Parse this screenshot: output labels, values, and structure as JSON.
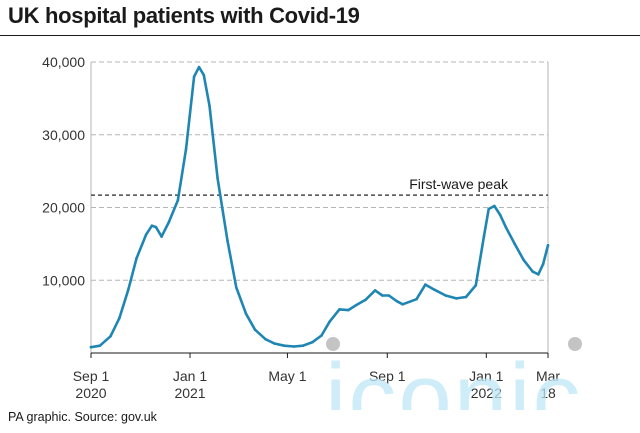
{
  "title": "UK hospital patients with Covid-19",
  "source": "PA graphic. Source: gov.uk",
  "watermark": "iconic",
  "chart_data": {
    "type": "line",
    "title": "UK hospital patients with Covid-19",
    "x_range": [
      "2020-09-01",
      "2022-03-18"
    ],
    "ylim": [
      0,
      40000
    ],
    "y_ticks": [
      {
        "value": 10000,
        "label": "10,000"
      },
      {
        "value": 20000,
        "label": "20,000"
      },
      {
        "value": 30000,
        "label": "30,000"
      },
      {
        "value": 40000,
        "label": "40,000"
      }
    ],
    "x_ticks": [
      {
        "date": "2020-09-01",
        "line1": "Sep 1",
        "line2": "2020"
      },
      {
        "date": "2021-01-01",
        "line1": "Jan 1",
        "line2": "2021"
      },
      {
        "date": "2021-05-01",
        "line1": "May 1",
        "line2": ""
      },
      {
        "date": "2021-09-01",
        "line1": "Sep 1",
        "line2": ""
      },
      {
        "date": "2022-01-01",
        "line1": "Jan 1",
        "line2": "2022"
      },
      {
        "date": "2022-03-18",
        "line1": "Mar",
        "line2": "18"
      }
    ],
    "grid": true,
    "series_color": "#1f86b3",
    "reference_line": {
      "value": 21700,
      "label": "First-wave peak"
    },
    "x": [
      "2020-09-01",
      "2020-09-12",
      "2020-09-25",
      "2020-10-06",
      "2020-10-17",
      "2020-10-27",
      "2020-11-08",
      "2020-11-15",
      "2020-11-20",
      "2020-11-27",
      "2020-12-06",
      "2020-12-17",
      "2020-12-27",
      "2021-01-06",
      "2021-01-12",
      "2021-01-18",
      "2021-01-25",
      "2021-02-04",
      "2021-02-16",
      "2021-02-27",
      "2021-03-11",
      "2021-03-22",
      "2021-04-04",
      "2021-04-15",
      "2021-04-27",
      "2021-05-09",
      "2021-05-20",
      "2021-06-01",
      "2021-06-12",
      "2021-06-22",
      "2021-07-04",
      "2021-07-15",
      "2021-07-25",
      "2021-08-05",
      "2021-08-17",
      "2021-08-26",
      "2021-09-03",
      "2021-09-13",
      "2021-09-20",
      "2021-10-07",
      "2021-10-18",
      "2021-10-29",
      "2021-11-12",
      "2021-11-25",
      "2021-12-07",
      "2021-12-19",
      "2021-12-29",
      "2022-01-04",
      "2022-01-11",
      "2022-01-18",
      "2022-01-25",
      "2022-02-05",
      "2022-02-16",
      "2022-02-27",
      "2022-03-06",
      "2022-03-12",
      "2022-03-18"
    ],
    "y": [
      800,
      1000,
      2300,
      4800,
      8700,
      13000,
      16300,
      17500,
      17300,
      16000,
      18000,
      21000,
      28000,
      38000,
      39300,
      38200,
      34000,
      24000,
      15500,
      9000,
      5400,
      3200,
      1900,
      1300,
      1000,
      900,
      1000,
      1500,
      2400,
      4300,
      6000,
      5900,
      6600,
      7300,
      8600,
      7900,
      7900,
      7100,
      6700,
      7400,
      9400,
      8700,
      7900,
      7500,
      7700,
      9300,
      16000,
      19800,
      20200,
      19000,
      17300,
      15000,
      12800,
      11200,
      10800,
      12200,
      14800
    ]
  }
}
